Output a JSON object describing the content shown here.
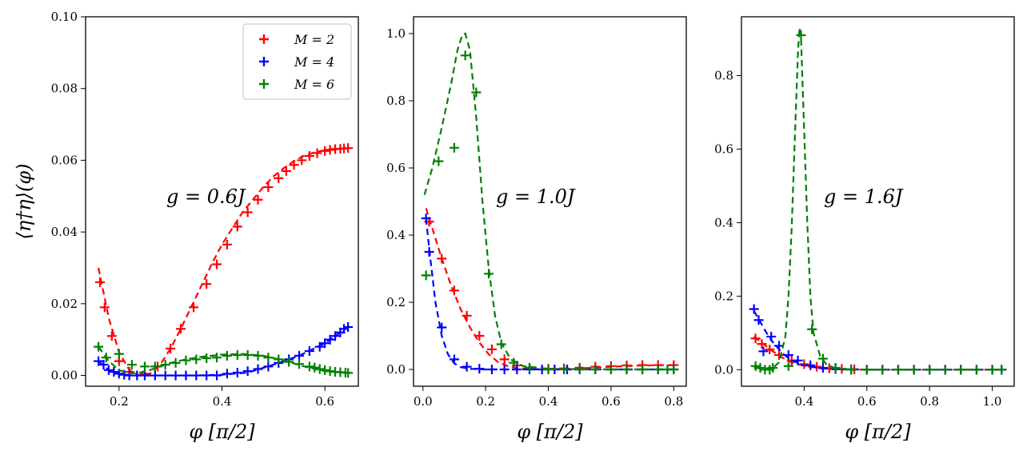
{
  "chart_data": [
    {
      "type": "line",
      "annotation": "g = 0.6J",
      "xlabel": "φ [π/2]",
      "ylabel": "⟨η†η⟩(φ)",
      "xlim": [
        0.135,
        0.665
      ],
      "ylim": [
        -0.003,
        0.1
      ],
      "xticks": [
        "0.2",
        "0.4",
        "0.6"
      ],
      "xtick_values": [
        0.2,
        0.4,
        0.6
      ],
      "yticks": [
        "0.00",
        "0.02",
        "0.04",
        "0.06",
        "0.08",
        "0.10"
      ],
      "ytick_values": [
        0.0,
        0.02,
        0.04,
        0.06,
        0.08,
        0.1
      ],
      "legend": {
        "position": "top-right",
        "entries": [
          {
            "label": "M = 2",
            "color": "#ff0000"
          },
          {
            "label": "M = 4",
            "color": "#0000ff"
          },
          {
            "label": "M = 6",
            "color": "#008000"
          }
        ]
      },
      "series": [
        {
          "name": "M = 2",
          "color": "#ff0000",
          "line_x": [
            0.16,
            0.18,
            0.2,
            0.22,
            0.24,
            0.26,
            0.28,
            0.3,
            0.32,
            0.34,
            0.36,
            0.38,
            0.4,
            0.42,
            0.44,
            0.46,
            0.48,
            0.5,
            0.52,
            0.54,
            0.56,
            0.58,
            0.6,
            0.62,
            0.64
          ],
          "line_y": [
            0.03,
            0.016,
            0.0065,
            0.0015,
            0.0,
            0.0005,
            0.003,
            0.0075,
            0.013,
            0.019,
            0.025,
            0.031,
            0.0365,
            0.041,
            0.0455,
            0.049,
            0.0525,
            0.0555,
            0.0578,
            0.0598,
            0.0613,
            0.0622,
            0.0628,
            0.0632,
            0.0634
          ],
          "points_x": [
            0.163,
            0.172,
            0.186,
            0.2,
            0.22,
            0.25,
            0.275,
            0.3,
            0.32,
            0.345,
            0.37,
            0.39,
            0.41,
            0.43,
            0.45,
            0.47,
            0.49,
            0.51,
            0.525,
            0.54,
            0.555,
            0.57,
            0.585,
            0.6,
            0.61,
            0.62,
            0.63,
            0.637,
            0.645
          ],
          "points_y": [
            0.026,
            0.019,
            0.011,
            0.004,
            0.001,
            0.0005,
            0.0025,
            0.0075,
            0.013,
            0.019,
            0.0255,
            0.031,
            0.0365,
            0.0415,
            0.0455,
            0.049,
            0.0525,
            0.055,
            0.057,
            0.0587,
            0.06,
            0.0612,
            0.062,
            0.0626,
            0.0629,
            0.0631,
            0.0632,
            0.0633,
            0.0634
          ]
        },
        {
          "name": "M = 4",
          "color": "#0000ff",
          "line_x": [
            0.16,
            0.18,
            0.2,
            0.22,
            0.24,
            0.26,
            0.28,
            0.3,
            0.35,
            0.4,
            0.45,
            0.5,
            0.55,
            0.6,
            0.62,
            0.645
          ],
          "line_y": [
            0.004,
            0.0015,
            0.0003,
            0.0,
            0.0,
            0.0,
            0.0,
            0.0,
            0.0,
            0.0002,
            0.0008,
            0.003,
            0.0055,
            0.009,
            0.011,
            0.0135
          ],
          "points_x": [
            0.16,
            0.17,
            0.18,
            0.19,
            0.2,
            0.21,
            0.22,
            0.235,
            0.25,
            0.27,
            0.29,
            0.31,
            0.33,
            0.35,
            0.37,
            0.39,
            0.41,
            0.43,
            0.45,
            0.47,
            0.49,
            0.51,
            0.53,
            0.55,
            0.57,
            0.59,
            0.6,
            0.61,
            0.62,
            0.63,
            0.637,
            0.645
          ],
          "points_y": [
            0.004,
            0.003,
            0.0015,
            0.001,
            0.0005,
            0.0002,
            0.0,
            0.0,
            0.0,
            0.0,
            0.0,
            0.0,
            0.0,
            0.0,
            0.0,
            0.0,
            0.0005,
            0.0008,
            0.0012,
            0.0018,
            0.0025,
            0.0035,
            0.0045,
            0.0055,
            0.0068,
            0.008,
            0.009,
            0.01,
            0.011,
            0.012,
            0.013,
            0.0135
          ]
        },
        {
          "name": "M = 6",
          "color": "#008000",
          "line_x": [
            0.16,
            0.18,
            0.2,
            0.22,
            0.24,
            0.26,
            0.28,
            0.3,
            0.33,
            0.36,
            0.4,
            0.44,
            0.48,
            0.52,
            0.56,
            0.6,
            0.645
          ],
          "line_y": [
            0.008,
            0.004,
            0.0015,
            0.0005,
            0.0008,
            0.0015,
            0.0025,
            0.0035,
            0.0045,
            0.0052,
            0.0058,
            0.006,
            0.0055,
            0.0042,
            0.0025,
            0.0012,
            0.0007
          ],
          "points_x": [
            0.16,
            0.175,
            0.2,
            0.225,
            0.25,
            0.27,
            0.29,
            0.31,
            0.33,
            0.35,
            0.37,
            0.39,
            0.41,
            0.43,
            0.45,
            0.47,
            0.49,
            0.51,
            0.53,
            0.55,
            0.57,
            0.58,
            0.59,
            0.6,
            0.61,
            0.62,
            0.63,
            0.64,
            0.645
          ],
          "points_y": [
            0.008,
            0.005,
            0.006,
            0.003,
            0.0025,
            0.0025,
            0.003,
            0.0035,
            0.0042,
            0.0045,
            0.0048,
            0.005,
            0.0055,
            0.0057,
            0.0057,
            0.0055,
            0.005,
            0.0045,
            0.0038,
            0.0032,
            0.0025,
            0.0022,
            0.0018,
            0.0015,
            0.0012,
            0.001,
            0.0009,
            0.0008,
            0.0007
          ]
        }
      ]
    },
    {
      "type": "line",
      "annotation": "g = 1.0J",
      "xlabel": "φ [π/2]",
      "ylabel": "",
      "xlim": [
        -0.03,
        0.84
      ],
      "ylim": [
        -0.05,
        1.05
      ],
      "xticks": [
        "0.0",
        "0.2",
        "0.4",
        "0.6",
        "0.8"
      ],
      "xtick_values": [
        0.0,
        0.2,
        0.4,
        0.6,
        0.8
      ],
      "yticks": [
        "0.0",
        "0.2",
        "0.4",
        "0.6",
        "0.8",
        "1.0"
      ],
      "ytick_values": [
        0.0,
        0.2,
        0.4,
        0.6,
        0.8,
        1.0
      ],
      "series": [
        {
          "name": "M = 2",
          "color": "#ff0000",
          "line_x": [
            0.01,
            0.03,
            0.06,
            0.09,
            0.12,
            0.15,
            0.18,
            0.21,
            0.24,
            0.27,
            0.3,
            0.35,
            0.4,
            0.5,
            0.6,
            0.7,
            0.8
          ],
          "line_y": [
            0.48,
            0.42,
            0.33,
            0.25,
            0.18,
            0.125,
            0.08,
            0.045,
            0.022,
            0.01,
            0.004,
            0.001,
            0.0,
            0.003,
            0.008,
            0.012,
            0.013
          ],
          "points_x": [
            0.02,
            0.06,
            0.1,
            0.14,
            0.18,
            0.22,
            0.26,
            0.3,
            0.34,
            0.4,
            0.45,
            0.5,
            0.55,
            0.6,
            0.65,
            0.7,
            0.75,
            0.8
          ],
          "points_y": [
            0.44,
            0.33,
            0.235,
            0.16,
            0.1,
            0.06,
            0.03,
            0.012,
            0.005,
            0.002,
            0.003,
            0.005,
            0.008,
            0.01,
            0.012,
            0.013,
            0.013,
            0.013
          ]
        },
        {
          "name": "M = 4",
          "color": "#0000ff",
          "line_x": [
            0.01,
            0.02,
            0.04,
            0.06,
            0.08,
            0.1,
            0.12,
            0.15,
            0.2,
            0.3,
            0.5,
            0.8
          ],
          "line_y": [
            0.45,
            0.36,
            0.2,
            0.1,
            0.045,
            0.018,
            0.007,
            0.002,
            0.0,
            0.0,
            0.0,
            0.0
          ],
          "points_x": [
            0.01,
            0.02,
            0.06,
            0.1,
            0.14,
            0.18,
            0.22,
            0.26,
            0.3,
            0.34,
            0.38,
            0.42,
            0.46,
            0.5,
            0.55,
            0.6,
            0.65,
            0.7,
            0.75,
            0.8
          ],
          "points_y": [
            0.45,
            0.35,
            0.125,
            0.03,
            0.008,
            0.002,
            0.0,
            0.0,
            0.0,
            0.0,
            0.0,
            0.0,
            0.0,
            0.0,
            0.0,
            0.0,
            0.0,
            0.0,
            0.0,
            0.0
          ]
        },
        {
          "name": "M = 6",
          "color": "#008000",
          "line_x": [
            0.005,
            0.03,
            0.06,
            0.09,
            0.11,
            0.125,
            0.135,
            0.15,
            0.17,
            0.19,
            0.21,
            0.23,
            0.25,
            0.28,
            0.32,
            0.4,
            0.6,
            0.8
          ],
          "line_y": [
            0.52,
            0.6,
            0.72,
            0.85,
            0.95,
            0.995,
            1.0,
            0.95,
            0.75,
            0.5,
            0.3,
            0.16,
            0.08,
            0.03,
            0.01,
            0.002,
            0.0,
            0.0
          ],
          "points_x": [
            0.01,
            0.05,
            0.1,
            0.135,
            0.17,
            0.21,
            0.25,
            0.29,
            0.34,
            0.4,
            0.45,
            0.5,
            0.55,
            0.6,
            0.65,
            0.7,
            0.75,
            0.78,
            0.8
          ],
          "points_y": [
            0.28,
            0.62,
            0.66,
            0.935,
            0.825,
            0.285,
            0.075,
            0.02,
            0.005,
            0.0,
            0.0,
            0.0,
            0.0,
            0.0,
            0.0,
            0.0,
            0.0,
            0.0,
            0.0
          ]
        }
      ]
    },
    {
      "type": "line",
      "annotation": "g = 1.6J",
      "xlabel": "φ [π/2]",
      "ylabel": "",
      "xlim": [
        0.2,
        1.07
      ],
      "ylim": [
        -0.045,
        0.96
      ],
      "xticks": [
        "0.4",
        "0.6",
        "0.8",
        "1.0"
      ],
      "xtick_values": [
        0.4,
        0.6,
        0.8,
        1.0
      ],
      "yticks": [
        "0.0",
        "0.2",
        "0.4",
        "0.6",
        "0.8"
      ],
      "ytick_values": [
        0.0,
        0.2,
        0.4,
        0.6,
        0.8
      ],
      "series": [
        {
          "name": "M = 2",
          "color": "#ff0000",
          "line_x": [
            0.24,
            0.27,
            0.3,
            0.33,
            0.36,
            0.4,
            0.45,
            0.5,
            0.6,
            0.8,
            1.03
          ],
          "line_y": [
            0.09,
            0.07,
            0.05,
            0.033,
            0.02,
            0.01,
            0.004,
            0.001,
            0.0,
            0.0,
            0.0
          ],
          "points_x": [
            0.245,
            0.265,
            0.29,
            0.32,
            0.36,
            0.4,
            0.44,
            0.48,
            0.52,
            0.56,
            0.6,
            0.65,
            0.7,
            0.75,
            0.8,
            0.85,
            0.9,
            0.95,
            1.0,
            1.03
          ],
          "points_y": [
            0.085,
            0.07,
            0.055,
            0.04,
            0.025,
            0.015,
            0.008,
            0.004,
            0.002,
            0.001,
            0.0,
            0.0,
            0.0,
            0.0,
            0.0,
            0.0,
            0.0,
            0.0,
            0.0,
            0.0
          ]
        },
        {
          "name": "M = 4",
          "color": "#0000ff",
          "line_x": [
            0.24,
            0.26,
            0.28,
            0.3,
            0.33,
            0.36,
            0.4,
            0.45,
            0.5,
            0.6,
            0.8,
            1.03
          ],
          "line_y": [
            0.16,
            0.13,
            0.1,
            0.075,
            0.045,
            0.025,
            0.012,
            0.004,
            0.001,
            0.0,
            0.0,
            0.0
          ],
          "points_x": [
            0.24,
            0.255,
            0.27,
            0.295,
            0.32,
            0.35,
            0.38,
            0.42,
            0.46,
            0.5,
            0.55,
            0.6,
            0.65,
            0.7,
            0.75,
            0.8,
            0.85,
            0.9,
            0.95,
            1.0,
            1.03
          ],
          "points_y": [
            0.165,
            0.135,
            0.05,
            0.09,
            0.065,
            0.04,
            0.025,
            0.012,
            0.005,
            0.002,
            0.001,
            0.0,
            0.0,
            0.0,
            0.0,
            0.0,
            0.0,
            0.0,
            0.0,
            0.0,
            0.0
          ]
        },
        {
          "name": "M = 6",
          "color": "#008000",
          "line_x": [
            0.24,
            0.27,
            0.3,
            0.32,
            0.34,
            0.35,
            0.36,
            0.37,
            0.38,
            0.385,
            0.39,
            0.4,
            0.41,
            0.42,
            0.43,
            0.45,
            0.47,
            0.5,
            0.6,
            0.8,
            1.03
          ],
          "line_y": [
            0.005,
            0.003,
            0.005,
            0.02,
            0.09,
            0.2,
            0.38,
            0.62,
            0.86,
            0.93,
            0.9,
            0.65,
            0.4,
            0.2,
            0.1,
            0.04,
            0.015,
            0.003,
            0.0,
            0.0,
            0.0
          ],
          "points_x": [
            0.245,
            0.26,
            0.275,
            0.29,
            0.3,
            0.35,
            0.39,
            0.425,
            0.46,
            0.5,
            0.55,
            0.6,
            0.65,
            0.7,
            0.75,
            0.8,
            0.85,
            0.9,
            0.95,
            1.0,
            1.03
          ],
          "points_y": [
            0.01,
            0.005,
            0.0,
            0.0,
            0.005,
            0.01,
            0.91,
            0.11,
            0.03,
            0.005,
            0.0,
            0.0,
            0.0,
            0.0,
            0.0,
            0.0,
            0.0,
            0.0,
            0.0,
            0.0,
            0.0
          ]
        }
      ]
    }
  ]
}
